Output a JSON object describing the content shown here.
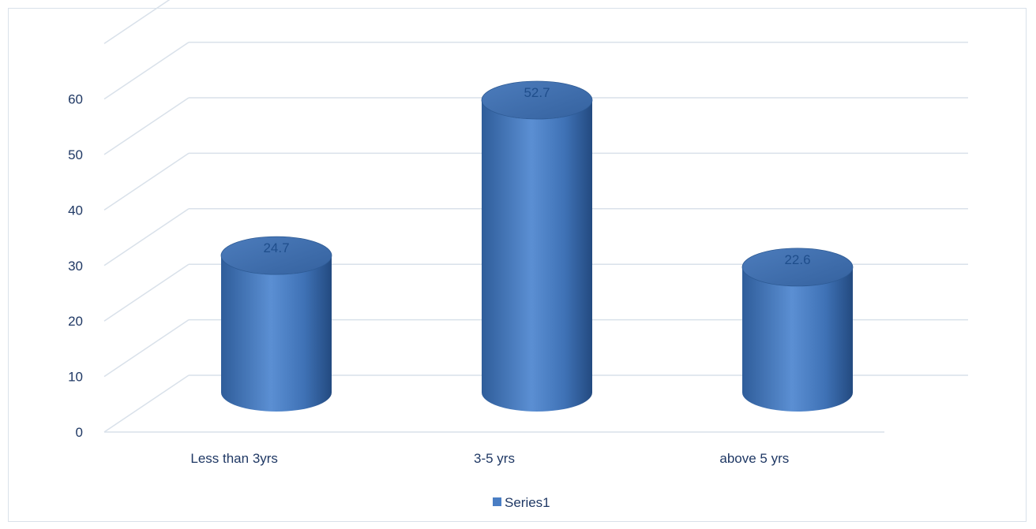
{
  "chart_data": {
    "type": "bar",
    "title": "",
    "xlabel": "",
    "ylabel": "",
    "categories": [
      "Less than 3yrs",
      "3-5 yrs",
      "above 5 yrs"
    ],
    "series": [
      {
        "name": "Series1",
        "values": [
          24.7,
          52.7,
          22.6
        ]
      }
    ],
    "ylim": [
      0,
      70
    ],
    "yticks": [
      0,
      10,
      20,
      30,
      40,
      50,
      60
    ],
    "grid": true,
    "legend_position": "bottom",
    "style": "3d-cylinder",
    "colors": {
      "series": "#4a7ec4",
      "series_dark": "#2a5590",
      "series_top": "#3e6aa8",
      "grid": "#d9e1ea",
      "text": "#1f3864"
    }
  }
}
